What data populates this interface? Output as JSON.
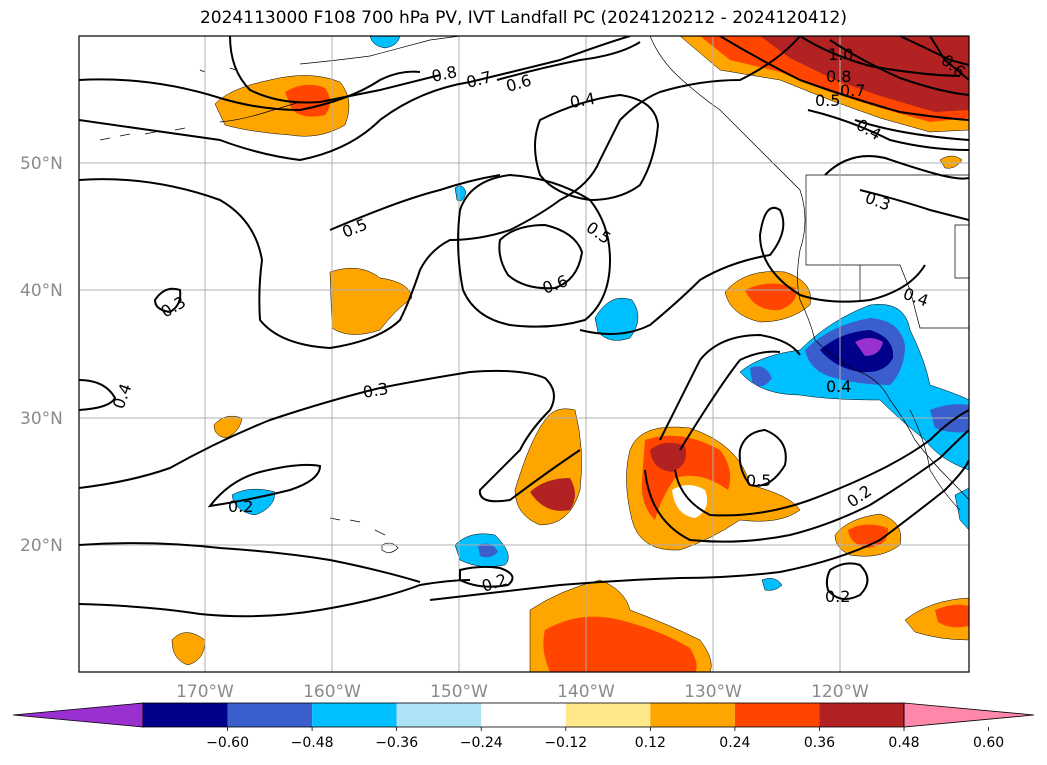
{
  "title": "2024113000 F108 700 hPa PV, IVT Landfall PC (2024120212 - 2024120412)",
  "latitude_labels": [
    "50°N",
    "40°N",
    "30°N",
    "20°N"
  ],
  "longitude_labels": [
    "170°W",
    "160°W",
    "150°W",
    "140°W",
    "130°W",
    "120°W"
  ],
  "contour_labels": [
    "1.0",
    "0.8",
    "0.7",
    "0.6",
    "0.5",
    "0.4",
    "0.8",
    "0.7",
    "0.6",
    "0.4",
    "0.5",
    "0.5",
    "0.6",
    "0.4",
    "0.3",
    "0.3",
    "0.4",
    "0.3",
    "0.4",
    "0.2",
    "0.5",
    "0.2",
    "0.2",
    "0.2"
  ],
  "colorbar": {
    "ticks": [
      "−0.60",
      "−0.48",
      "−0.36",
      "−0.24",
      "−0.12",
      "0.12",
      "0.24",
      "0.36",
      "0.48",
      "0.60"
    ],
    "colors": [
      "#9b30d0",
      "#00008b",
      "#3a5fcd",
      "#00bfff",
      "#aee2f7",
      "#ffffff",
      "#ffe88a",
      "#ffa500",
      "#ff4500",
      "#b22222",
      "#ff88aa"
    ]
  }
}
